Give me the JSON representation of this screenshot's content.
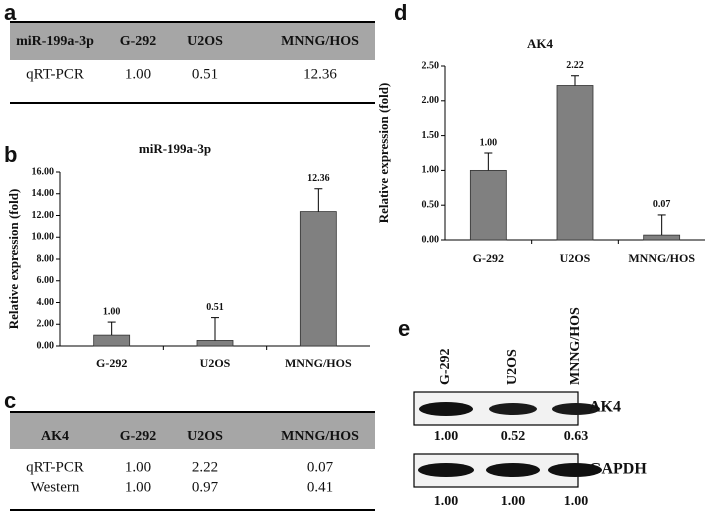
{
  "panel_labels": [
    "a",
    "b",
    "c",
    "d",
    "e"
  ],
  "table_a": {
    "header": [
      "miR-199a-3p",
      "G-292",
      "U2OS",
      "MNNG/HOS"
    ],
    "rows": [
      [
        "qRT-PCR",
        "1.00",
        "0.51",
        "12.36"
      ]
    ]
  },
  "chart_data": [
    {
      "type": "bar",
      "title": "miR-199a-3p",
      "y_label": "Relative expression (fold)",
      "categories": [
        "G-292",
        "U2OS",
        "MNNG/HOS"
      ],
      "values": [
        1.0,
        0.51,
        12.36
      ],
      "value_labels": [
        "1.00",
        "0.51",
        "12.36"
      ],
      "errors": [
        1.2,
        2.1,
        2.1
      ],
      "color": "#808080",
      "ylim": [
        0,
        16
      ],
      "yticks": [
        {
          "value": 0,
          "label": "0.00"
        },
        {
          "value": 2,
          "label": "2.00"
        },
        {
          "value": 4,
          "label": "4.00"
        },
        {
          "value": 6,
          "label": "6.00"
        },
        {
          "value": 8,
          "label": "8.00"
        },
        {
          "value": 10,
          "label": "10.00"
        },
        {
          "value": 12,
          "label": "12.00"
        },
        {
          "value": 14,
          "label": "14.00"
        },
        {
          "value": 16,
          "label": "16.00"
        }
      ]
    },
    {
      "type": "bar",
      "title": "AK4",
      "y_label": "Relative expression (fold)",
      "categories": [
        "G-292",
        "U2OS",
        "MNNG/HOS"
      ],
      "values": [
        1.0,
        2.22,
        0.07
      ],
      "value_labels": [
        "1.00",
        "2.22",
        "0.07"
      ],
      "errors": [
        0.25,
        0.14,
        0.29
      ],
      "color": "#808080",
      "ylim": [
        0,
        2.5
      ],
      "yticks": [
        {
          "value": 0,
          "label": "0.00"
        },
        {
          "value": 0.5,
          "label": "0.50"
        },
        {
          "value": 1,
          "label": "1.00"
        },
        {
          "value": 1.5,
          "label": "1.50"
        },
        {
          "value": 2,
          "label": "2.00"
        },
        {
          "value": 2.5,
          "label": "2.50"
        }
      ]
    }
  ],
  "table_c": {
    "header": [
      "AK4",
      "G-292",
      "U2OS",
      "MNNG/HOS"
    ],
    "rows": [
      [
        "qRT-PCR",
        "1.00",
        "2.22",
        "0.07"
      ],
      [
        "Western",
        "1.00",
        "0.97",
        "0.41"
      ]
    ]
  },
  "blot_e": {
    "lanes": [
      "G-292",
      "U2OS",
      "MNNG/HOS"
    ],
    "rows": [
      {
        "name": "AK4",
        "values": [
          "1.00",
          "0.52",
          "0.63"
        ]
      },
      {
        "name": "GAPDH",
        "values": [
          "1.00",
          "1.00",
          "1.00"
        ]
      }
    ]
  }
}
